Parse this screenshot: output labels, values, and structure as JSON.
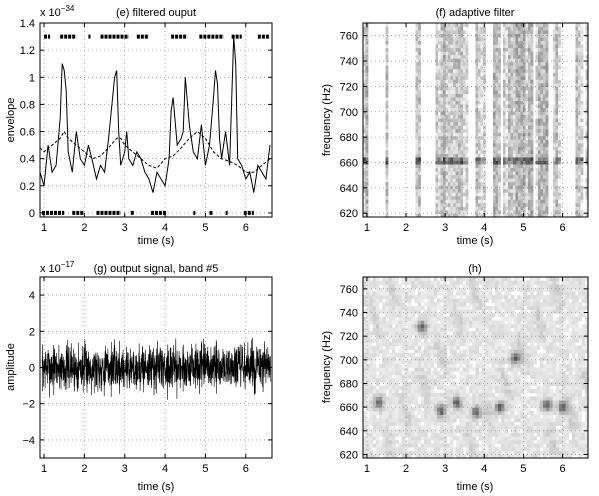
{
  "panels": {
    "e": {
      "title": "(e) filtered ouput",
      "ylabel": "envelope",
      "xlabel": "time (s)",
      "exponent_base": "x 10",
      "exponent_power": "−34"
    },
    "f": {
      "title": "(f) adaptive filter",
      "ylabel": "frequency (Hz)",
      "xlabel": "time (s)"
    },
    "g": {
      "title": "(g) output signal,  band #5",
      "ylabel": "amplitude",
      "xlabel": "time (s)",
      "exponent_base": "x 10",
      "exponent_power": "−17"
    },
    "h": {
      "title": "(h)",
      "ylabel": "frequency (Hz)",
      "xlabel": "time (s)"
    }
  },
  "chart_data": [
    {
      "id": "e",
      "type": "line",
      "title": "(e) filtered ouput",
      "xlabel": "time (s)",
      "ylabel": "envelope",
      "y_multiplier": "x 10^-34",
      "xlim": [
        0.9,
        6.65
      ],
      "ylim": [
        -0.03,
        1.4
      ],
      "xticks": [
        1,
        2,
        3,
        4,
        5,
        6
      ],
      "yticks": [
        0,
        0.2,
        0.4,
        0.6,
        0.8,
        1,
        1.2,
        1.4
      ],
      "ytick_labels": [
        "0",
        "0.2",
        "0.4",
        "0.6",
        "0.8",
        "1",
        "1.2",
        "1.4"
      ],
      "grid": true,
      "series": [
        {
          "style": "solid",
          "x": [
            0.9,
            1.0,
            1.1,
            1.2,
            1.3,
            1.4,
            1.45,
            1.5,
            1.55,
            1.6,
            1.7,
            1.8,
            1.9,
            2.0,
            2.1,
            2.2,
            2.3,
            2.4,
            2.5,
            2.6,
            2.7,
            2.75,
            2.8,
            2.85,
            2.9,
            3.0,
            3.05,
            3.1,
            3.2,
            3.3,
            3.4,
            3.5,
            3.6,
            3.7,
            3.8,
            3.9,
            4.0,
            4.1,
            4.15,
            4.2,
            4.3,
            4.4,
            4.45,
            4.5,
            4.6,
            4.7,
            4.8,
            4.9,
            5.0,
            5.1,
            5.2,
            5.25,
            5.3,
            5.35,
            5.4,
            5.5,
            5.6,
            5.7,
            5.75,
            5.8,
            5.9,
            6.0,
            6.1,
            6.2,
            6.3,
            6.4,
            6.5,
            6.6
          ],
          "y": [
            0.3,
            0.2,
            0.5,
            0.3,
            0.35,
            0.7,
            1.1,
            1.05,
            0.9,
            0.45,
            0.3,
            0.6,
            0.4,
            0.35,
            0.5,
            0.38,
            0.25,
            0.35,
            0.3,
            0.55,
            0.85,
            1.0,
            1.05,
            0.6,
            0.35,
            0.45,
            0.6,
            0.4,
            0.35,
            0.45,
            0.4,
            0.3,
            0.25,
            0.15,
            0.3,
            0.25,
            0.2,
            0.4,
            0.75,
            0.85,
            0.5,
            0.55,
            0.6,
            1.0,
            0.65,
            0.45,
            0.4,
            0.65,
            0.35,
            0.5,
            0.85,
            1.05,
            0.95,
            0.55,
            0.4,
            0.6,
            0.35,
            1.3,
            1.1,
            0.4,
            0.35,
            0.25,
            0.3,
            0.15,
            0.35,
            0.3,
            0.25,
            0.5
          ]
        },
        {
          "style": "dashed",
          "x": [
            0.9,
            1.0,
            1.2,
            1.4,
            1.5,
            1.6,
            1.8,
            2.0,
            2.2,
            2.4,
            2.6,
            2.8,
            2.9,
            3.0,
            3.2,
            3.4,
            3.6,
            3.8,
            4.0,
            4.2,
            4.4,
            4.6,
            4.8,
            5.0,
            5.2,
            5.4,
            5.6,
            5.8,
            6.0,
            6.2,
            6.4,
            6.6
          ],
          "y": [
            0.48,
            0.45,
            0.5,
            0.55,
            0.6,
            0.55,
            0.5,
            0.45,
            0.4,
            0.42,
            0.48,
            0.55,
            0.55,
            0.5,
            0.45,
            0.4,
            0.35,
            0.33,
            0.4,
            0.42,
            0.48,
            0.55,
            0.6,
            0.55,
            0.45,
            0.4,
            0.38,
            0.35,
            0.3,
            0.3,
            0.35,
            0.4
          ]
        }
      ],
      "markers_top": {
        "y": 1.3,
        "segments": [
          [
            1.0,
            1.15
          ],
          [
            1.4,
            1.8
          ],
          [
            2.1,
            2.15
          ],
          [
            2.4,
            3.1
          ],
          [
            3.3,
            3.6
          ],
          [
            4.15,
            4.55
          ],
          [
            4.85,
            5.45
          ],
          [
            5.65,
            5.9
          ],
          [
            6.3,
            6.6
          ]
        ]
      },
      "markers_bottom": {
        "y": 0,
        "segments": [
          [
            0.95,
            1.5
          ],
          [
            1.7,
            2.0
          ],
          [
            2.3,
            2.9
          ],
          [
            3.15,
            3.25
          ],
          [
            3.65,
            4.05
          ],
          [
            4.7,
            4.75
          ],
          [
            5.1,
            5.2
          ],
          [
            5.5,
            5.55
          ],
          [
            5.95,
            6.2
          ]
        ]
      }
    },
    {
      "id": "f",
      "type": "heatmap",
      "title": "(f) adaptive filter",
      "xlabel": "time (s)",
      "ylabel": "frequency (Hz)",
      "xlim": [
        0.9,
        6.65
      ],
      "ylim": [
        617,
        770
      ],
      "xticks": [
        1,
        2,
        3,
        4,
        5,
        6
      ],
      "yticks": [
        620,
        640,
        660,
        680,
        700,
        720,
        740,
        760
      ],
      "grid": true,
      "colormap": "white-to-black",
      "blank_intervals": [
        [
          1.05,
          1.45
        ],
        [
          1.55,
          2.25
        ],
        [
          2.35,
          2.78
        ],
        [
          3.6,
          3.8
        ],
        [
          4.03,
          4.2
        ],
        [
          4.4,
          4.47
        ],
        [
          5.25,
          5.33
        ],
        [
          5.62,
          5.75
        ],
        [
          5.95,
          6.3
        ],
        [
          6.55,
          6.6
        ]
      ],
      "dark_band_hz": 661
    },
    {
      "id": "g",
      "type": "line",
      "title": "(g) output signal,  band #5",
      "xlabel": "time (s)",
      "ylabel": "amplitude",
      "y_multiplier": "x 10^-17",
      "xlim": [
        0.9,
        6.65
      ],
      "ylim": [
        -5,
        5
      ],
      "xticks": [
        1,
        2,
        3,
        4,
        5,
        6
      ],
      "yticks": [
        -4,
        -2,
        0,
        2,
        4
      ],
      "grid": true,
      "signal": {
        "description": "dense noise",
        "mean": 0,
        "envelope_max": 2.0,
        "typical_range": [
          -1.5,
          1.5
        ]
      }
    },
    {
      "id": "h",
      "type": "heatmap",
      "title": "(h)",
      "xlabel": "time (s)",
      "ylabel": "frequency (Hz)",
      "xlim": [
        0.9,
        6.65
      ],
      "ylim": [
        617,
        770
      ],
      "xticks": [
        1,
        2,
        3,
        4,
        5,
        6
      ],
      "yticks": [
        620,
        640,
        660,
        680,
        700,
        720,
        740,
        760
      ],
      "grid": true,
      "colormap": "white-to-black",
      "dark_spots": [
        [
          1.3,
          664
        ],
        [
          3.3,
          664
        ],
        [
          4.4,
          660
        ],
        [
          5.6,
          662
        ],
        [
          6.0,
          660
        ],
        [
          2.4,
          728
        ],
        [
          4.8,
          702
        ],
        [
          2.9,
          657
        ],
        [
          3.8,
          656
        ]
      ]
    }
  ]
}
